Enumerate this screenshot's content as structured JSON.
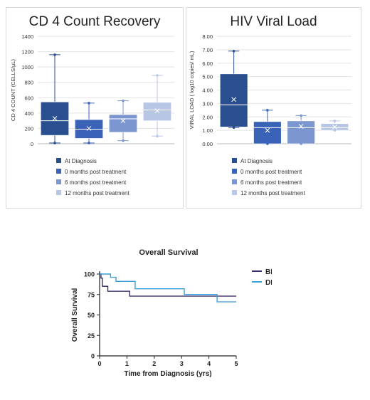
{
  "chart_data": [
    {
      "type": "box",
      "title": "CD 4 Count Recovery",
      "ylabel": "CD 4 COUNT (CELLS/µL)",
      "ylim": [
        0,
        1400
      ],
      "yticks": [
        "0",
        "200",
        "400",
        "600",
        "800",
        "1000",
        "1200",
        "1400"
      ],
      "grid": true,
      "legend_position": "bottom",
      "series": [
        {
          "name": "At Diagnosis",
          "color": "#2a4f8f",
          "min": 10,
          "q1": 110,
          "median": 300,
          "q3": 545,
          "max": 1160,
          "mean": 330
        },
        {
          "name": "0 months post treatment",
          "color": "#3a63b8",
          "min": 10,
          "q1": 70,
          "median": 190,
          "q3": 315,
          "max": 530,
          "mean": 200
        },
        {
          "name": "6 months post treatment",
          "color": "#7c96d0",
          "min": 40,
          "q1": 150,
          "median": 325,
          "q3": 380,
          "max": 560,
          "mean": 300
        },
        {
          "name": "12 months post treatment",
          "color": "#b8c6e6",
          "min": 100,
          "q1": 300,
          "median": 440,
          "q3": 540,
          "max": 890,
          "mean": 430
        }
      ]
    },
    {
      "type": "box",
      "title": "HIV Viral Load",
      "ylabel": "VIRAL LOAD ( log10 copies/ mL)",
      "ylim": [
        0,
        8
      ],
      "yticks": [
        "0.00",
        "1.00",
        "2.00",
        "3.00",
        "4.00",
        "5.00",
        "6.00",
        "7.00",
        "8.00"
      ],
      "grid": true,
      "legend_position": "bottom",
      "series": [
        {
          "name": "At Diagnosis",
          "color": "#2a4f8f",
          "min": 1.2,
          "q1": 1.25,
          "median": 2.9,
          "q3": 5.2,
          "max": 6.9,
          "mean": 3.3
        },
        {
          "name": "0 months post treatment",
          "color": "#3a63b8",
          "min": 0,
          "q1": 0,
          "median": 1.2,
          "q3": 1.65,
          "max": 2.5,
          "mean": 1.0
        },
        {
          "name": "6 months post treatment",
          "color": "#7c96d0",
          "min": 0,
          "q1": 0,
          "median": 1.2,
          "q3": 1.7,
          "max": 2.1,
          "mean": 1.3
        },
        {
          "name": "12 months post treatment",
          "color": "#b8c6e6",
          "min": 1.0,
          "q1": 1.0,
          "median": 1.2,
          "q3": 1.5,
          "max": 1.7,
          "mean": 1.25
        }
      ]
    },
    {
      "type": "line",
      "title": "Overall Survival",
      "xlabel": "Time from Diagnosis (yrs)",
      "ylabel": "Overall Survival",
      "xlim": [
        0,
        5
      ],
      "ylim": [
        0,
        100
      ],
      "xticks": [
        "0",
        "1",
        "2",
        "3",
        "4",
        "5"
      ],
      "yticks": [
        "0",
        "25",
        "50",
        "75",
        "100"
      ],
      "legend_position": "right",
      "series": [
        {
          "name": "BL",
          "color": "#3d2f6e",
          "x": [
            0,
            0.05,
            0.1,
            0.3,
            1.1,
            5.0
          ],
          "y": [
            100,
            95,
            85,
            79,
            73,
            73
          ]
        },
        {
          "name": "DLBCL",
          "color": "#3a9fd8",
          "x": [
            0,
            0.4,
            0.6,
            1.3,
            3.1,
            4.3,
            5.0
          ],
          "y": [
            100,
            96,
            91,
            82,
            75,
            66,
            66
          ]
        }
      ]
    }
  ]
}
